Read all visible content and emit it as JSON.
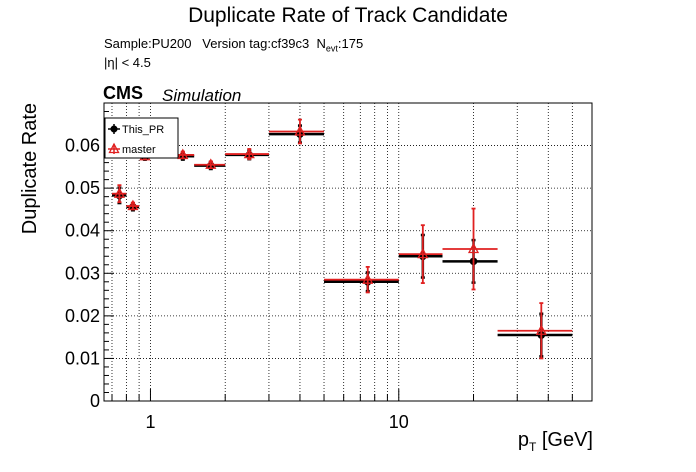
{
  "title": "Duplicate Rate of Track Candidate",
  "info": {
    "sample": "Sample:PU200",
    "version_tag": "Version tag:cf39c3",
    "nevt_label": "N",
    "nevt_sub": "evt",
    "nevt_value": ":175",
    "eta_cut": "|η| < 4.5"
  },
  "cms_label": "CMS",
  "simulation_label": "Simulation",
  "chart_data": {
    "type": "scatter",
    "title": "Duplicate Rate of Track Candidate",
    "xlabel_main": "p",
    "xlabel_sub": "T",
    "xlabel_unit": " [GeV]",
    "ylabel": "Duplicate Rate",
    "x_scale": "log",
    "xlim": [
      0.65,
      60
    ],
    "ylim": [
      0,
      0.07
    ],
    "grid": true,
    "legend_position": "top-left",
    "x_ticks": [
      {
        "value": 1,
        "label": "1"
      },
      {
        "value": 10,
        "label": "10"
      }
    ],
    "y_ticks": [
      {
        "value": 0,
        "label": "0"
      },
      {
        "value": 0.01,
        "label": "0.01"
      },
      {
        "value": 0.02,
        "label": "0.02"
      },
      {
        "value": 0.03,
        "label": "0.03"
      },
      {
        "value": 0.04,
        "label": "0.04"
      },
      {
        "value": 0.05,
        "label": "0.05"
      },
      {
        "value": 0.06,
        "label": "0.06"
      }
    ],
    "series": [
      {
        "name": "This_PR",
        "color": "#000000",
        "marker": "circle",
        "points": [
          {
            "x": 0.75,
            "xlo": 0.7,
            "xhi": 0.8,
            "y": 0.0483,
            "yerr": 0.0018
          },
          {
            "x": 0.85,
            "xlo": 0.8,
            "xhi": 0.9,
            "y": 0.0456,
            "yerr": 0.0008
          },
          {
            "x": 0.95,
            "xlo": 0.9,
            "xhi": 1.0,
            "y": 0.0573,
            "yerr": 0.0006
          },
          {
            "x": 1.35,
            "xlo": 1.2,
            "xhi": 1.5,
            "y": 0.0575,
            "yerr": 0.0008
          },
          {
            "x": 1.75,
            "xlo": 1.5,
            "xhi": 2.0,
            "y": 0.0553,
            "yerr": 0.0008
          },
          {
            "x": 2.5,
            "xlo": 2.0,
            "xhi": 3.0,
            "y": 0.0578,
            "yerr": 0.001
          },
          {
            "x": 4.0,
            "xlo": 3.0,
            "xhi": 5.0,
            "y": 0.0627,
            "yerr": 0.002
          },
          {
            "x": 7.5,
            "xlo": 5.0,
            "xhi": 10.0,
            "y": 0.028,
            "yerr": 0.0022
          },
          {
            "x": 12.5,
            "xlo": 10.0,
            "xhi": 15.0,
            "y": 0.034,
            "yerr": 0.005
          },
          {
            "x": 20.0,
            "xlo": 15.0,
            "xhi": 25.0,
            "y": 0.0328,
            "yerr": 0.005
          },
          {
            "x": 37.5,
            "xlo": 25.0,
            "xhi": 50.0,
            "y": 0.0155,
            "yerr": 0.005
          }
        ]
      },
      {
        "name": "master",
        "color": "#e02020",
        "marker": "triangle-open",
        "points": [
          {
            "x": 0.75,
            "xlo": 0.7,
            "xhi": 0.8,
            "y": 0.0487,
            "yerr": 0.002
          },
          {
            "x": 0.85,
            "xlo": 0.8,
            "xhi": 0.9,
            "y": 0.0458,
            "yerr": 0.0008
          },
          {
            "x": 0.95,
            "xlo": 0.9,
            "xhi": 1.0,
            "y": 0.0575,
            "yerr": 0.0006
          },
          {
            "x": 1.35,
            "xlo": 1.2,
            "xhi": 1.5,
            "y": 0.0578,
            "yerr": 0.0008
          },
          {
            "x": 1.75,
            "xlo": 1.5,
            "xhi": 2.0,
            "y": 0.0555,
            "yerr": 0.0008
          },
          {
            "x": 2.5,
            "xlo": 2.0,
            "xhi": 3.0,
            "y": 0.058,
            "yerr": 0.0012
          },
          {
            "x": 4.0,
            "xlo": 3.0,
            "xhi": 5.0,
            "y": 0.0633,
            "yerr": 0.0028
          },
          {
            "x": 7.5,
            "xlo": 5.0,
            "xhi": 10.0,
            "y": 0.0285,
            "yerr": 0.003
          },
          {
            "x": 12.5,
            "xlo": 10.0,
            "xhi": 15.0,
            "y": 0.0345,
            "yerr": 0.0068
          },
          {
            "x": 20.0,
            "xlo": 15.0,
            "xhi": 25.0,
            "y": 0.0357,
            "yerr": 0.0095
          },
          {
            "x": 37.5,
            "xlo": 25.0,
            "xhi": 50.0,
            "y": 0.0165,
            "yerr": 0.0065
          }
        ]
      }
    ]
  }
}
